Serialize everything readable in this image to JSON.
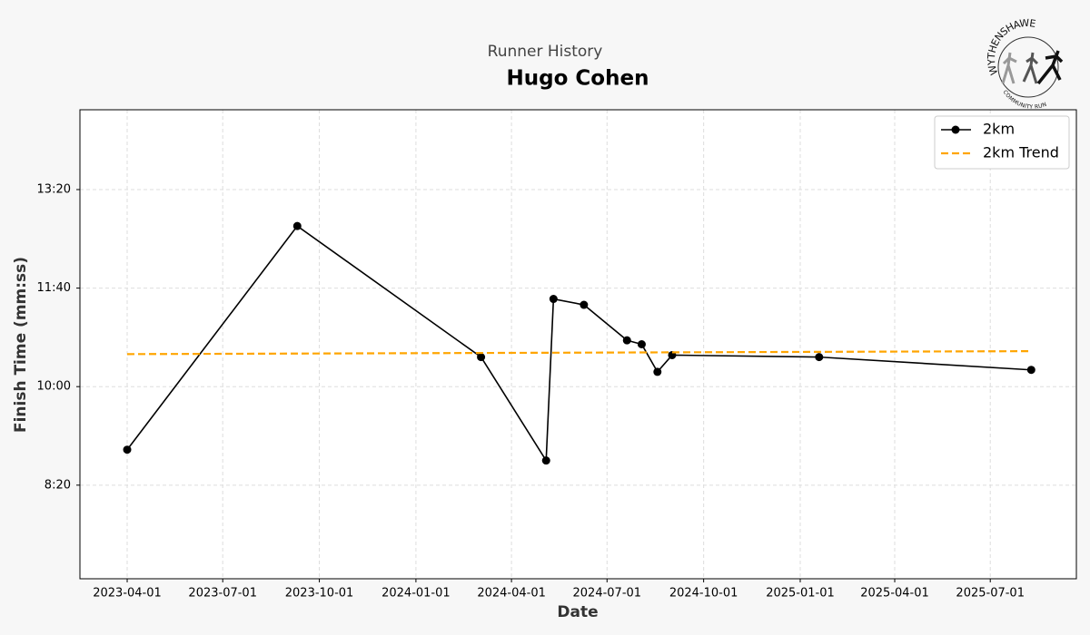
{
  "chart_data": {
    "type": "line",
    "subtitle": "Runner History",
    "title": "Hugo Cohen",
    "xlabel": "Date",
    "ylabel": "Finish Time (mm:ss)",
    "series": [
      {
        "name": "2km",
        "color": "#000000",
        "style": "solid",
        "marker": true,
        "x": [
          "2023-04-01",
          "2023-09-10",
          "2024-03-03",
          "2024-05-04",
          "2024-05-11",
          "2024-06-09",
          "2024-07-20",
          "2024-08-03",
          "2024-08-18",
          "2024-09-01",
          "2025-01-19",
          "2025-08-09"
        ],
        "values": [
          536,
          763,
          630,
          525,
          689,
          683,
          647,
          643,
          615,
          632,
          630,
          617
        ]
      },
      {
        "name": "2km Trend",
        "color": "#ffa500",
        "style": "dashed",
        "marker": false,
        "x": [
          "2023-04-01",
          "2025-08-09"
        ],
        "values": [
          633,
          636
        ]
      }
    ],
    "xlim": [
      "2023-02-15",
      "2025-09-21"
    ],
    "xticks": [
      "2023-04-01",
      "2023-07-01",
      "2023-10-01",
      "2024-01-01",
      "2024-04-01",
      "2024-07-01",
      "2024-10-01",
      "2025-01-01",
      "2025-04-01",
      "2025-07-01"
    ],
    "ylim": [
      405,
      881
    ],
    "yticks": [
      {
        "value": 500,
        "label": "8:20"
      },
      {
        "value": 600,
        "label": "10:00"
      },
      {
        "value": 700,
        "label": "11:40"
      },
      {
        "value": 800,
        "label": "13:20"
      }
    ],
    "grid": true,
    "legend": "upper right"
  },
  "logo": {
    "top": "WYTHENSHAWE",
    "bottom": "COMMUNITY RUN"
  }
}
